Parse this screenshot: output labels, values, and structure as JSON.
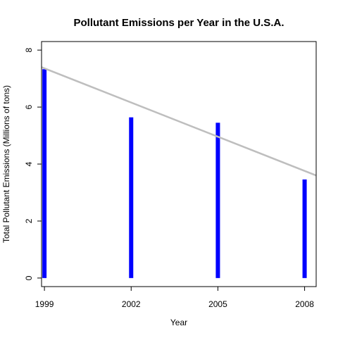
{
  "chart_data": {
    "type": "bar",
    "title": "Pollutant Emissions per Year in the U.S.A.",
    "xlabel": "Year",
    "ylabel": "Total Pollutant Emissions (Millions of tons)",
    "categories": [
      "1999",
      "2002",
      "2005",
      "2008"
    ],
    "x": [
      1999,
      2002,
      2005,
      2008
    ],
    "values": [
      7.33,
      5.64,
      5.45,
      3.46
    ],
    "xlim": [
      1998.9,
      2008.4
    ],
    "ylim": [
      -0.3,
      8.3
    ],
    "yticks": [
      0,
      2,
      4,
      6,
      8
    ],
    "xticks": [
      1999,
      2002,
      2005,
      2008
    ],
    "grid": false,
    "legend": "none",
    "bar_color": "#0000ff",
    "trend_line": {
      "intercept_at_xlim_min": 7.4,
      "value_at_xlim_max": 3.6,
      "color": "#bebebe"
    }
  }
}
